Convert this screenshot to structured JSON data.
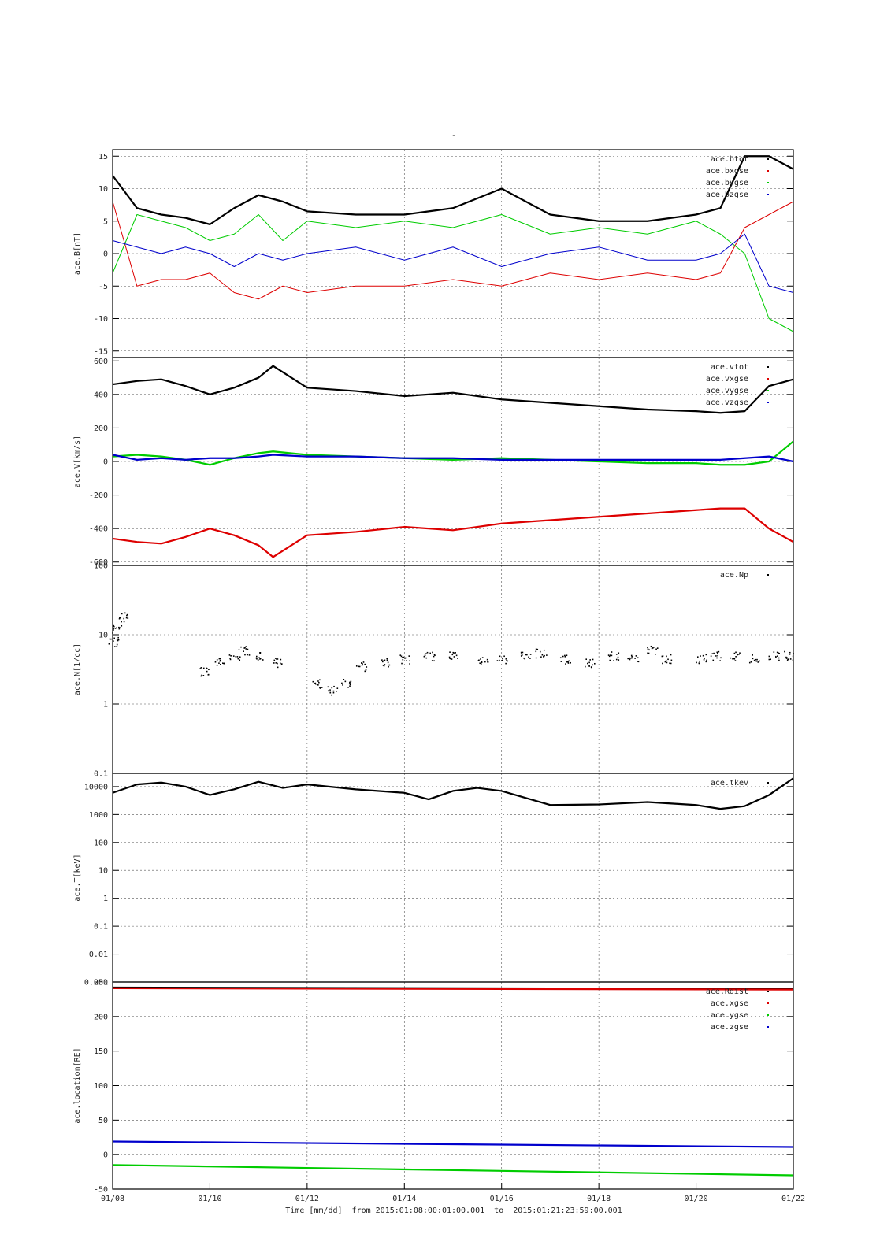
{
  "figure": {
    "title": "-",
    "xlabel": "Time [mm/dd]  from 2015:01:08:00:01:00.001  to  2015:01:21:23:59:00.001",
    "x_ticks": [
      "01/08",
      "01/10",
      "01/12",
      "01/14",
      "01/16",
      "01/18",
      "01/20",
      "01/22"
    ]
  },
  "colors": {
    "black": "#000000",
    "red": "#dd0000",
    "green": "#00cc00",
    "blue": "#0000cc"
  },
  "chart_data": [
    {
      "id": "B",
      "type": "line",
      "ylabel": "ace.B[nT]",
      "yscale": "linear",
      "ylim": [
        -16,
        16
      ],
      "yticks": [
        -15,
        -10,
        -5,
        0,
        5,
        10,
        15
      ],
      "ytick_labels": [
        "-15",
        "-10",
        "-5",
        "0",
        "5",
        "10",
        "15"
      ],
      "grid": true,
      "legend_position": "top-right",
      "legend": [
        "ace.btot",
        "ace.bxgse",
        "ace.bygse",
        "ace.bzgse"
      ],
      "x_days": [
        0,
        0.5,
        1,
        1.5,
        2,
        2.5,
        3,
        3.5,
        4,
        5,
        6,
        7,
        8,
        9,
        10,
        11,
        12,
        12.5,
        13,
        13.5,
        14
      ],
      "series": [
        {
          "name": "ace.btot",
          "color": "black",
          "values": [
            12,
            7,
            6,
            5.5,
            4.5,
            7,
            9,
            8,
            6.5,
            6,
            6,
            7,
            10,
            6,
            5,
            5,
            6,
            7,
            15,
            15,
            13
          ]
        },
        {
          "name": "ace.bxgse",
          "color": "red",
          "values": [
            8,
            -5,
            -4,
            -4,
            -3,
            -6,
            -7,
            -5,
            -6,
            -5,
            -5,
            -4,
            -5,
            -3,
            -4,
            -3,
            -4,
            -3,
            4,
            6,
            8
          ]
        },
        {
          "name": "ace.bygse",
          "color": "green",
          "values": [
            -3,
            6,
            5,
            4,
            2,
            3,
            6,
            2,
            5,
            4,
            5,
            4,
            6,
            3,
            4,
            3,
            5,
            3,
            0,
            -10,
            -12
          ]
        },
        {
          "name": "ace.bzgse",
          "color": "blue",
          "values": [
            2,
            1,
            0,
            1,
            0,
            -2,
            0,
            -1,
            0,
            1,
            -1,
            1,
            -2,
            0,
            1,
            -1,
            -1,
            0,
            3,
            -5,
            -6
          ]
        }
      ]
    },
    {
      "id": "V",
      "type": "line",
      "ylabel": "ace.V[km/s]",
      "yscale": "linear",
      "ylim": [
        -620,
        620
      ],
      "yticks": [
        -600,
        -400,
        -200,
        0,
        200,
        400,
        600
      ],
      "ytick_labels": [
        "-600",
        "-400",
        "-200",
        "0",
        "200",
        "400",
        "600"
      ],
      "grid": true,
      "legend_position": "top-right",
      "legend": [
        "ace.vtot",
        "ace.vxgse",
        "ace.vygse",
        "ace.vzgse"
      ],
      "x_days": [
        0,
        0.5,
        1,
        1.5,
        2,
        2.5,
        3,
        3.3,
        4,
        5,
        6,
        7,
        8,
        9,
        10,
        11,
        12,
        12.5,
        13,
        13.5,
        14
      ],
      "series": [
        {
          "name": "ace.vtot",
          "color": "black",
          "values": [
            460,
            480,
            490,
            450,
            400,
            440,
            500,
            570,
            440,
            420,
            390,
            410,
            370,
            350,
            330,
            310,
            300,
            290,
            300,
            450,
            490
          ]
        },
        {
          "name": "ace.vxgse",
          "color": "red",
          "values": [
            -460,
            -480,
            -490,
            -450,
            -400,
            -440,
            -500,
            -570,
            -440,
            -420,
            -390,
            -410,
            -370,
            -350,
            -330,
            -310,
            -290,
            -280,
            -280,
            -400,
            -480
          ]
        },
        {
          "name": "ace.vygse",
          "color": "green",
          "values": [
            30,
            40,
            30,
            10,
            -20,
            20,
            50,
            60,
            40,
            30,
            20,
            10,
            20,
            10,
            0,
            -10,
            -10,
            -20,
            -20,
            0,
            120
          ]
        },
        {
          "name": "ace.vzgse",
          "color": "blue",
          "values": [
            40,
            10,
            20,
            10,
            20,
            20,
            30,
            40,
            30,
            30,
            20,
            20,
            10,
            10,
            10,
            10,
            10,
            10,
            20,
            30,
            0
          ]
        }
      ]
    },
    {
      "id": "N",
      "type": "scatter",
      "ylabel": "ace.N[1/cc]",
      "yscale": "log",
      "ylim": [
        0.1,
        100
      ],
      "yticks": [
        0.1,
        1,
        10,
        100
      ],
      "ytick_labels": [
        "0.1",
        "1",
        "10",
        "100"
      ],
      "grid": true,
      "legend_position": "top-right",
      "legend": [
        "ace.Np"
      ],
      "x_days": [
        0,
        0.1,
        0.2,
        1.9,
        2.2,
        2.5,
        2.7,
        3.0,
        3.4,
        4.2,
        4.5,
        4.8,
        5.1,
        5.6,
        6.0,
        6.5,
        7.0,
        7.6,
        8.0,
        8.5,
        8.8,
        9.3,
        9.8,
        10.3,
        10.7,
        11.1,
        11.4,
        12.1,
        12.4,
        12.8,
        13.2,
        13.6,
        13.9
      ],
      "series": [
        {
          "name": "ace.Np",
          "color": "black",
          "values": [
            8,
            12,
            18,
            3,
            4,
            5,
            6,
            5,
            4,
            2,
            1.6,
            2,
            3.5,
            4,
            4.5,
            5,
            5,
            4.5,
            4.5,
            5,
            5.5,
            4.5,
            4,
            5,
            4.5,
            6,
            4.5,
            4.5,
            5,
            5,
            4.5,
            5,
            5
          ]
        }
      ]
    },
    {
      "id": "T",
      "type": "line",
      "ylabel": "ace.T[keV]",
      "yscale": "log",
      "ylim": [
        0.001,
        30000
      ],
      "yticks": [
        0.001,
        0.01,
        0.1,
        1,
        10,
        100,
        1000,
        10000
      ],
      "ytick_labels": [
        "0.001",
        "0.01",
        "0.1",
        "1",
        "10",
        "100",
        "1000",
        "10000"
      ],
      "grid": true,
      "legend_position": "top-right",
      "legend": [
        "ace.tkev"
      ],
      "x_days": [
        0,
        0.5,
        1,
        1.5,
        2,
        2.5,
        3,
        3.5,
        4,
        5,
        6,
        6.5,
        7,
        7.5,
        8,
        9,
        10,
        11,
        12,
        12.5,
        13,
        13.5,
        14
      ],
      "series": [
        {
          "name": "ace.tkev",
          "color": "black",
          "values": [
            6000,
            12000,
            14000,
            10000,
            5000,
            8000,
            15000,
            9000,
            12000,
            8000,
            6000,
            3500,
            7000,
            9000,
            7000,
            2200,
            2300,
            2800,
            2200,
            1600,
            2000,
            5000,
            20000
          ]
        }
      ]
    },
    {
      "id": "location",
      "type": "line",
      "ylabel": "ace.location[RE]",
      "yscale": "linear",
      "ylim": [
        -50,
        250
      ],
      "yticks": [
        -50,
        0,
        50,
        100,
        150,
        200,
        250
      ],
      "ytick_labels": [
        "-50",
        "0",
        "50",
        "100",
        "150",
        "200",
        "250"
      ],
      "grid": true,
      "legend_position": "top-right",
      "legend": [
        "ace.Rdist",
        "ace.xgse",
        "ace.ygse",
        "ace.zgse"
      ],
      "x_days": [
        0,
        14
      ],
      "series": [
        {
          "name": "ace.Rdist",
          "color": "black",
          "values": [
            242,
            240
          ]
        },
        {
          "name": "ace.xgse",
          "color": "red",
          "values": [
            241,
            239
          ]
        },
        {
          "name": "ace.ygse",
          "color": "green",
          "values": [
            -15,
            -30
          ]
        },
        {
          "name": "ace.zgse",
          "color": "blue",
          "values": [
            19,
            11
          ]
        }
      ]
    }
  ]
}
